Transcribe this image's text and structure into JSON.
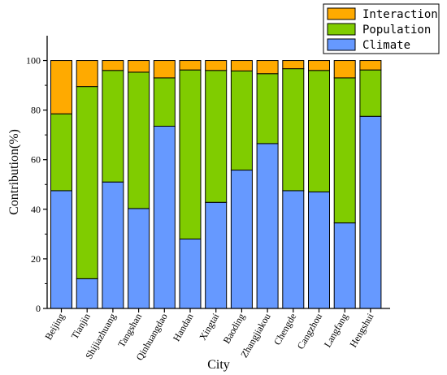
{
  "chart_data": {
    "type": "bar",
    "stacked": true,
    "categories": [
      "Beijing",
      "Tianjin",
      "Shijiazhuang",
      "Tangshan",
      "Qinhuangdao",
      "Handan",
      "Xingtai",
      "Baoding",
      "Zhangjiakou",
      "Chengde",
      "Cangzhou",
      "Langfang",
      "Hengshui"
    ],
    "series": [
      {
        "name": "Climate",
        "color": "#6699ff",
        "values": [
          47.5,
          12,
          51,
          40.3,
          73.5,
          28,
          42.8,
          55.8,
          66.5,
          47.5,
          47,
          34.5,
          77.5
        ]
      },
      {
        "name": "Population",
        "color": "#80cc00",
        "values": [
          31,
          77.5,
          45,
          55,
          19.5,
          68.2,
          53.2,
          40,
          28.2,
          49.2,
          49,
          58.5,
          18.7
        ]
      },
      {
        "name": "Interaction",
        "color": "#ffaa00",
        "values": [
          21.5,
          10.5,
          4,
          4.7,
          7,
          3.8,
          4,
          4.2,
          5.3,
          3.3,
          4,
          7,
          3.8
        ]
      }
    ],
    "legend_order": [
      "Interaction",
      "Population",
      "Climate"
    ],
    "xlabel": "City",
    "ylabel": "Contribution(%)",
    "ylim": [
      0,
      110
    ],
    "yticks": [
      "0",
      "20",
      "40",
      "60",
      "80",
      "100"
    ],
    "grid": false,
    "legend_position": "top-right"
  }
}
